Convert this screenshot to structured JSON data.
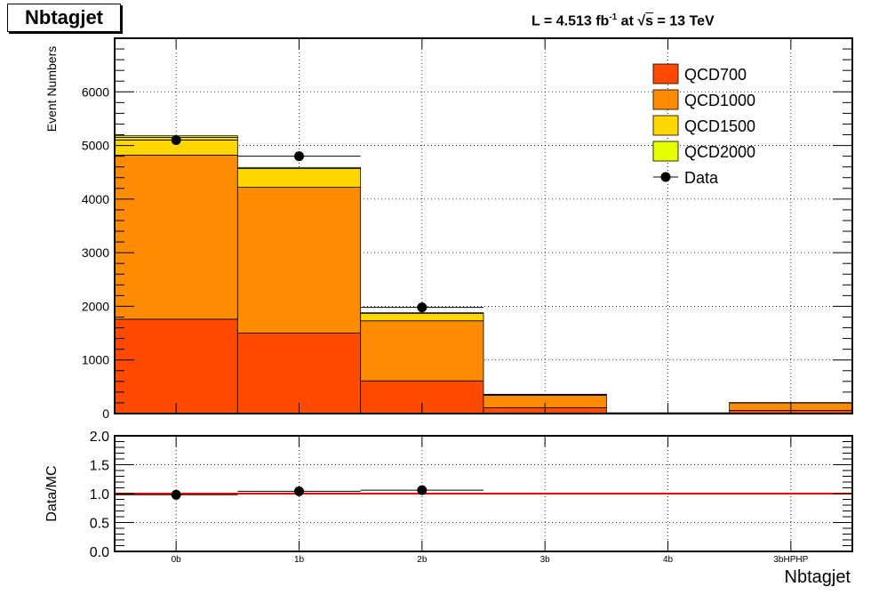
{
  "title": "Nbtagjet",
  "lumi_label": {
    "prefix": "L = 4.513 fb",
    "exp": "-1",
    "mid": " at  ",
    "sqrt": "s",
    "suffix": " = 13 TeV"
  },
  "chart_data": [
    {
      "type": "bar",
      "stacked": true,
      "categories": [
        "0b",
        "1b",
        "2b",
        "3b",
        "4b",
        "3bHPHP"
      ],
      "series": [
        {
          "name": "QCD700",
          "color": "#ff4a00",
          "values": [
            1760,
            1500,
            610,
            110,
            5,
            60
          ]
        },
        {
          "name": "QCD1000",
          "color": "#ff8c00",
          "values": [
            3060,
            2720,
            1120,
            230,
            10,
            140
          ]
        },
        {
          "name": "QCD1500",
          "color": "#ffd700",
          "values": [
            330,
            350,
            140,
            15,
            0,
            5
          ]
        },
        {
          "name": "QCD2000",
          "color": "#e6ff00",
          "values": [
            30,
            20,
            10,
            5,
            0,
            0
          ]
        }
      ],
      "data": {
        "name": "Data",
        "values": [
          5100,
          4800,
          1980
        ],
        "errors": [
          60,
          60,
          40
        ]
      },
      "xlabel": "",
      "ylabel": "Event Numbers",
      "ylim": [
        0,
        7000
      ],
      "yticks": [
        0,
        1000,
        2000,
        3000,
        4000,
        5000,
        6000
      ],
      "grid": true,
      "legend": "top-right"
    },
    {
      "type": "scatter",
      "categories": [
        "0b",
        "1b",
        "2b",
        "3b",
        "4b",
        "3bHPHP"
      ],
      "ratio": [
        0.98,
        1.04,
        1.06
      ],
      "ratio_errors": [
        0.02,
        0.02,
        0.03
      ],
      "reference_line": 1.0,
      "reference_color": "#ff0000",
      "xlabel": "Nbtagjet",
      "ylabel": "Data/MC",
      "ylim": [
        0,
        2
      ],
      "yticks": [
        "0.0",
        "0.5",
        "1.0",
        "1.5",
        "2.0"
      ],
      "grid": true
    }
  ]
}
